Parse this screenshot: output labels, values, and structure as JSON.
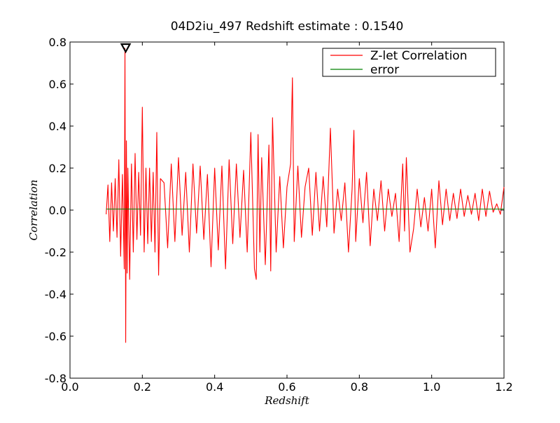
{
  "chart_data": {
    "type": "line",
    "title": "04D2iu_497 Redshift estimate : 0.1540",
    "xlabel": "Redshift",
    "ylabel": "Correlation",
    "xlim": [
      0.0,
      1.2
    ],
    "ylim": [
      -0.8,
      0.8
    ],
    "xticks": [
      "0.0",
      "0.2",
      "0.4",
      "0.6",
      "0.8",
      "1.0",
      "1.2"
    ],
    "yticks": [
      "0.8",
      "0.6",
      "0.4",
      "0.2",
      "0.0",
      "-0.2",
      "-0.4",
      "-0.6",
      "-0.8"
    ],
    "grid": false,
    "legend_position": "top-right",
    "peak_marker": {
      "x": 0.154,
      "y": 0.77,
      "shape": "triangle-down"
    },
    "series": [
      {
        "name": "Z-let Correlation",
        "color": "#ff0000",
        "x": [
          0.1,
          0.105,
          0.11,
          0.115,
          0.12,
          0.125,
          0.13,
          0.135,
          0.14,
          0.145,
          0.15,
          0.152,
          0.154,
          0.156,
          0.158,
          0.16,
          0.165,
          0.17,
          0.175,
          0.18,
          0.185,
          0.19,
          0.195,
          0.2,
          0.205,
          0.21,
          0.215,
          0.22,
          0.225,
          0.23,
          0.235,
          0.24,
          0.245,
          0.25,
          0.26,
          0.27,
          0.28,
          0.29,
          0.3,
          0.31,
          0.32,
          0.33,
          0.34,
          0.35,
          0.36,
          0.37,
          0.38,
          0.39,
          0.4,
          0.41,
          0.42,
          0.43,
          0.44,
          0.45,
          0.46,
          0.47,
          0.48,
          0.49,
          0.5,
          0.51,
          0.515,
          0.52,
          0.525,
          0.53,
          0.54,
          0.55,
          0.555,
          0.56,
          0.57,
          0.58,
          0.59,
          0.6,
          0.61,
          0.615,
          0.62,
          0.63,
          0.64,
          0.65,
          0.66,
          0.67,
          0.68,
          0.69,
          0.7,
          0.71,
          0.72,
          0.73,
          0.74,
          0.75,
          0.76,
          0.77,
          0.78,
          0.785,
          0.79,
          0.8,
          0.81,
          0.82,
          0.83,
          0.84,
          0.85,
          0.86,
          0.87,
          0.88,
          0.89,
          0.9,
          0.91,
          0.92,
          0.925,
          0.93,
          0.94,
          0.95,
          0.96,
          0.97,
          0.98,
          0.99,
          1.0,
          1.01,
          1.02,
          1.03,
          1.04,
          1.05,
          1.06,
          1.07,
          1.08,
          1.09,
          1.1,
          1.11,
          1.12,
          1.13,
          1.14,
          1.15,
          1.16,
          1.17,
          1.18,
          1.19,
          1.2
        ],
        "y": [
          -0.02,
          0.12,
          -0.15,
          0.13,
          -0.1,
          0.15,
          -0.13,
          0.24,
          -0.22,
          0.17,
          -0.28,
          0.77,
          -0.63,
          0.33,
          -0.3,
          0.2,
          -0.33,
          0.22,
          -0.2,
          0.27,
          -0.14,
          0.18,
          -0.12,
          0.49,
          -0.2,
          0.2,
          -0.16,
          0.2,
          -0.15,
          0.18,
          -0.2,
          0.37,
          -0.31,
          0.15,
          0.13,
          -0.18,
          0.22,
          -0.15,
          0.25,
          -0.12,
          0.18,
          -0.2,
          0.22,
          -0.11,
          0.21,
          -0.14,
          0.17,
          -0.27,
          0.2,
          -0.19,
          0.21,
          -0.28,
          0.24,
          -0.16,
          0.22,
          -0.13,
          0.19,
          -0.2,
          0.37,
          -0.28,
          -0.33,
          0.36,
          -0.2,
          0.25,
          -0.26,
          0.31,
          -0.29,
          0.44,
          -0.2,
          0.16,
          -0.18,
          0.11,
          0.22,
          0.63,
          -0.15,
          0.21,
          -0.13,
          0.11,
          0.2,
          -0.12,
          0.18,
          -0.1,
          0.16,
          -0.08,
          0.39,
          -0.11,
          0.1,
          -0.05,
          0.13,
          -0.2,
          0.1,
          0.38,
          -0.15,
          0.15,
          -0.06,
          0.18,
          -0.17,
          0.1,
          -0.05,
          0.14,
          -0.1,
          0.1,
          -0.03,
          0.08,
          -0.15,
          0.22,
          -0.1,
          0.25,
          -0.2,
          -0.09,
          0.1,
          -0.08,
          0.06,
          -0.1,
          0.1,
          -0.18,
          0.14,
          -0.07,
          0.1,
          -0.05,
          0.08,
          -0.04,
          0.1,
          -0.03,
          0.07,
          -0.02,
          0.08,
          -0.05,
          0.1,
          -0.03,
          0.09,
          -0.01,
          0.03,
          -0.02,
          0.11
        ]
      },
      {
        "name": "error",
        "color": "#008000",
        "x": [
          0.1,
          1.2
        ],
        "y": [
          0.005,
          0.005
        ]
      }
    ]
  }
}
